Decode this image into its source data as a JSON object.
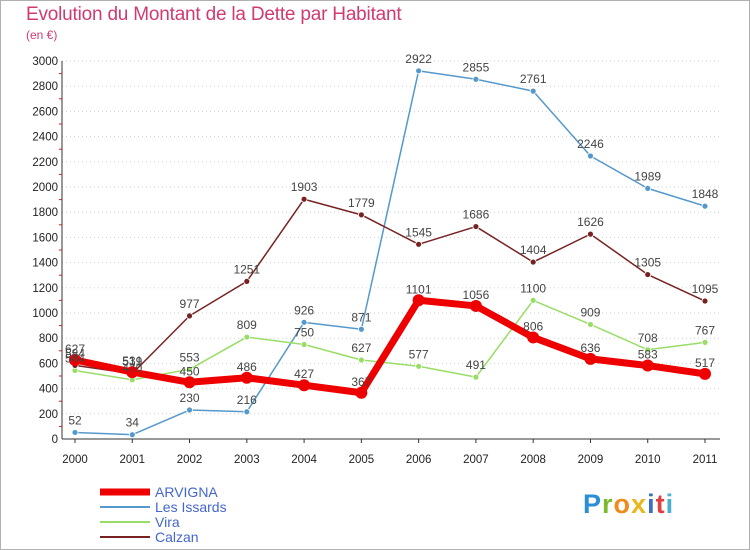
{
  "header": {
    "title": "Evolution du Montant de la Dette par Habitant",
    "subtitle": "(en €)"
  },
  "logo": {
    "text": "Proxiti"
  },
  "chart_data": {
    "type": "line",
    "title": "Evolution du Montant de la Dette par Habitant",
    "subtitle": "(en €)",
    "xlabel": "",
    "ylabel": "",
    "x": [
      "2000",
      "2001",
      "2002",
      "2003",
      "2004",
      "2005",
      "2006",
      "2007",
      "2008",
      "2009",
      "2010",
      "2011"
    ],
    "ylim": [
      0,
      3000
    ],
    "yticks": [
      0,
      200,
      400,
      600,
      800,
      1000,
      1200,
      1400,
      1600,
      1800,
      2000,
      2200,
      2400,
      2600,
      2800,
      3000
    ],
    "grid": "horizontal dotted",
    "legend": "bottom-left",
    "series": [
      {
        "name": "ARVIGNA",
        "color": "#ee0000",
        "values": [
          627,
          531,
          450,
          486,
          427,
          367,
          1101,
          1056,
          806,
          636,
          583,
          517
        ]
      },
      {
        "name": "Les Issards",
        "color": "#5599cc",
        "values": [
          52,
          34,
          230,
          216,
          926,
          871,
          2922,
          2855,
          2761,
          2246,
          1989,
          1848
        ]
      },
      {
        "name": "Vira",
        "color": "#99dd66",
        "values": [
          544,
          470,
          553,
          809,
          750,
          627,
          577,
          491,
          1100,
          909,
          708,
          767
        ]
      },
      {
        "name": "Calzan",
        "color": "#772222",
        "values": [
          584,
          519,
          977,
          1251,
          1903,
          1779,
          1545,
          1686,
          1404,
          1626,
          1305,
          1095
        ]
      }
    ]
  }
}
